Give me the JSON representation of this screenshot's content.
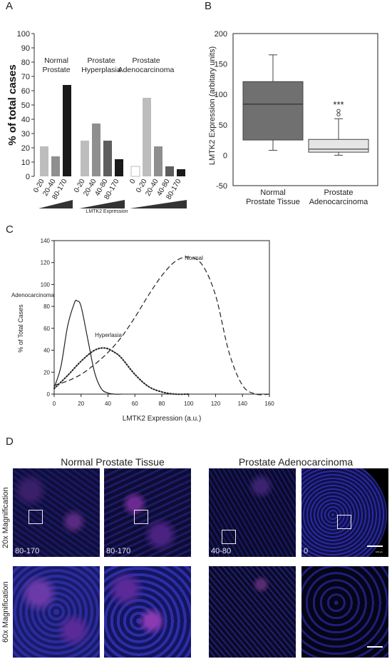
{
  "panels": {
    "a": "A",
    "b": "B",
    "c": "C",
    "d": "D"
  },
  "chart_data": [
    {
      "panel": "A",
      "type": "bar",
      "ylabel": "% of total cases",
      "ylim": [
        0,
        100
      ],
      "yticks": [
        0,
        10,
        20,
        30,
        40,
        50,
        60,
        70,
        80,
        90,
        100
      ],
      "xlabel": "LMTK2 Expression",
      "groups": [
        {
          "name": "Normal Prostate",
          "categories": [
            "0-20",
            "20-40",
            "80-170"
          ],
          "values": [
            21,
            14,
            64
          ],
          "colors": [
            "#bdbdbd",
            "#8f8f8f",
            "#1a1a1a"
          ]
        },
        {
          "name": "Prostate Hyperplasia",
          "categories": [
            "0-20",
            "20-40",
            "40-80",
            "80-170"
          ],
          "values": [
            25,
            37,
            25,
            12
          ],
          "colors": [
            "#bdbdbd",
            "#8f8f8f",
            "#5e5e5e",
            "#1a1a1a"
          ]
        },
        {
          "name": "Prostate Adenocarcinoma",
          "categories": [
            "0",
            "0-20",
            "20-40",
            "40-80",
            "80-170"
          ],
          "values": [
            7,
            55,
            21,
            7,
            5
          ],
          "colors": [
            "#ffffff",
            "#bdbdbd",
            "#8f8f8f",
            "#5e5e5e",
            "#1a1a1a"
          ]
        }
      ]
    },
    {
      "panel": "B",
      "type": "box",
      "ylabel": "LMTK2 Expression (arbitary units)",
      "ylim": [
        -50,
        200
      ],
      "yticks": [
        -50,
        0,
        50,
        100,
        150,
        200
      ],
      "boxes": [
        {
          "label": "Normal Prostate Tissue",
          "min": 8,
          "q1": 25,
          "median": 84,
          "q3": 121,
          "max": 165,
          "color": "#707070"
        },
        {
          "label": "Prostate Adenocarcinoma",
          "min": 0,
          "q1": 5,
          "median": 10,
          "q3": 26,
          "max": 60,
          "outliers": [
            67,
            73
          ],
          "color": "#e6e6e6"
        }
      ],
      "annotation": "***"
    },
    {
      "panel": "C",
      "type": "line",
      "xlabel": "LMTK2 Expression (a.u.)",
      "ylabel": "% of Total Cases",
      "xlim": [
        0,
        160
      ],
      "ylim": [
        0,
        140
      ],
      "xticks": [
        0,
        20,
        40,
        60,
        80,
        100,
        120,
        140,
        160
      ],
      "yticks": [
        0,
        20,
        40,
        60,
        80,
        100,
        120,
        140
      ],
      "series": [
        {
          "name": "Adenocarcinoma",
          "style": "solid",
          "x": [
            0,
            5,
            10,
            15,
            17,
            20,
            25,
            30,
            35,
            40,
            45,
            50
          ],
          "y": [
            6,
            25,
            62,
            83,
            85,
            80,
            50,
            20,
            5,
            1,
            0,
            0
          ]
        },
        {
          "name": "Hyperlasia",
          "style": "dotted",
          "x": [
            0,
            10,
            20,
            30,
            38,
            45,
            50,
            60,
            70,
            80,
            90,
            100
          ],
          "y": [
            5,
            17,
            30,
            40,
            42,
            38,
            33,
            18,
            7,
            2,
            0,
            0
          ]
        },
        {
          "name": "Normal",
          "style": "dashed",
          "x": [
            0,
            10,
            20,
            30,
            40,
            50,
            60,
            70,
            80,
            90,
            100,
            110,
            120,
            130,
            140,
            150,
            160
          ],
          "y": [
            8,
            12,
            18,
            27,
            38,
            52,
            70,
            90,
            108,
            121,
            125,
            118,
            90,
            38,
            8,
            0,
            0
          ]
        }
      ]
    }
  ],
  "figure_d": {
    "titles": {
      "normal": "Normal Prostate Tissue",
      "adeno": "Prostate Adenocarcinoma"
    },
    "rows": {
      "mag20": "20x Magnification",
      "mag60": "60x Magnification"
    },
    "levels": [
      "80-170",
      "80-170",
      "40-80",
      "0"
    ],
    "scalebar": "100 µm"
  }
}
